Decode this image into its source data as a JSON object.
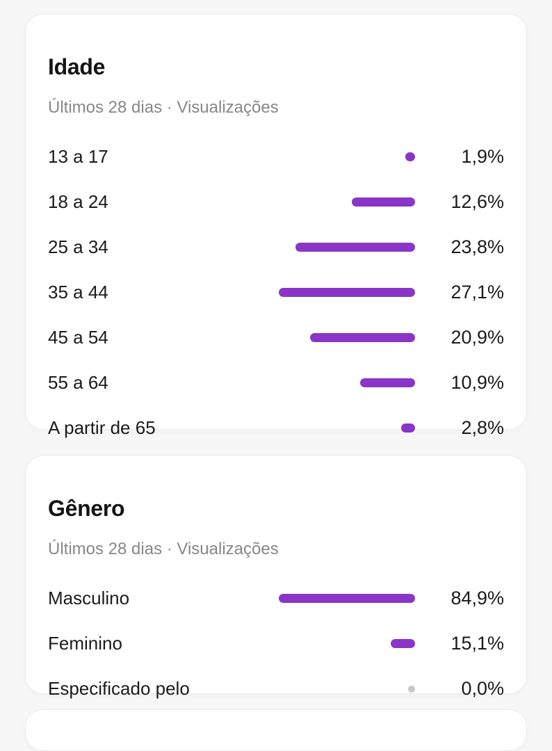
{
  "colors": {
    "bar_accent": "#8A35C8",
    "zero_dot": "#C8C8C8",
    "card_background": "#FFFFFF",
    "page_background": "#F7F7F8",
    "title_text": "#141414",
    "subtitle_text": "#878787",
    "row_text": "#1B1B1B"
  },
  "chart_data": [
    {
      "type": "bar",
      "orientation": "horizontal",
      "title": "Idade",
      "subtitle": "Últimos 28 dias · Visualizações",
      "unit": "%",
      "legend": "none",
      "grid": false,
      "categories": [
        "13 a 17",
        "18 a 24",
        "25 a 34",
        "35 a 44",
        "45 a 54",
        "55 a 64",
        "A partir de 65"
      ],
      "values": [
        1.9,
        12.6,
        23.8,
        27.1,
        20.9,
        10.9,
        2.8
      ],
      "value_labels": [
        "1,9%",
        "12,6%",
        "23,8%",
        "27,1%",
        "20,9%",
        "10,9%",
        "2,8%"
      ]
    },
    {
      "type": "bar",
      "orientation": "horizontal",
      "title": "Gênero",
      "subtitle": "Últimos 28 dias · Visualizações",
      "unit": "%",
      "legend": "none",
      "grid": false,
      "categories": [
        "Masculino",
        "Feminino",
        "Especificado pelo"
      ],
      "values": [
        84.9,
        15.1,
        0.0
      ],
      "value_labels": [
        "84,9%",
        "15,1%",
        "0,0%"
      ]
    }
  ]
}
